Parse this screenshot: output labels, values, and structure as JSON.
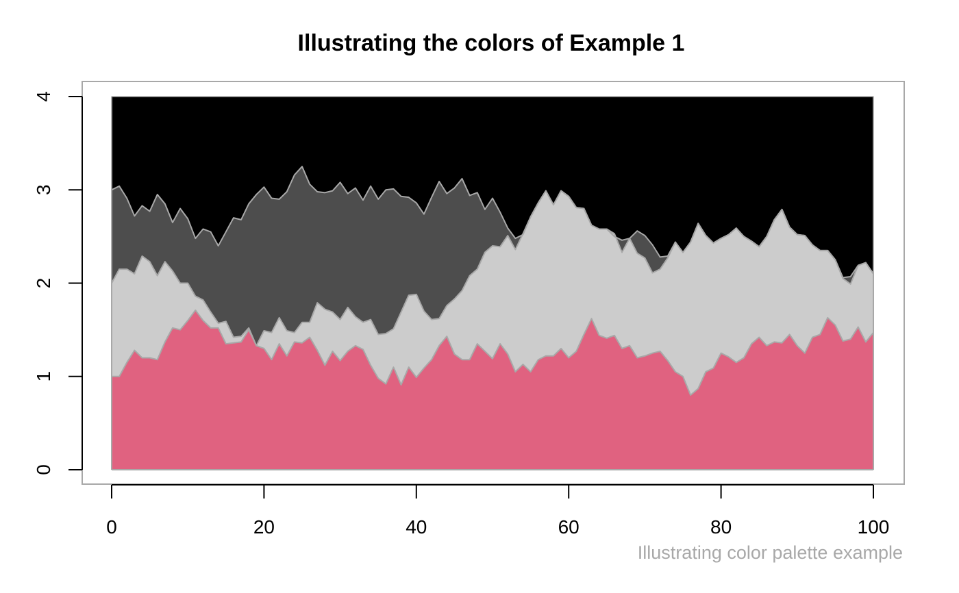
{
  "chart_data": {
    "type": "area",
    "title": "Illustrating the colors of Example 1",
    "caption": "Illustrating color palette example",
    "caption_color": "#a8a8a8",
    "xlabel": "",
    "ylabel": "",
    "xlim": [
      0,
      100
    ],
    "ylim": [
      0,
      4
    ],
    "x_ticks": [
      0,
      20,
      40,
      60,
      80,
      100
    ],
    "y_ticks": [
      0,
      1,
      2,
      3,
      4
    ],
    "grid": false,
    "legend": "none",
    "outline_color": "#a8a8a8",
    "stacked_boundaries": [
      {
        "fill": "#e06280",
        "values": [
          1.0,
          1.0,
          1.15,
          1.28,
          1.2,
          1.2,
          1.18,
          1.37,
          1.52,
          1.5,
          1.6,
          1.71,
          1.6,
          1.52,
          1.52,
          1.35,
          1.36,
          1.37,
          1.5,
          1.33,
          1.3,
          1.18,
          1.35,
          1.22,
          1.37,
          1.36,
          1.42,
          1.28,
          1.12,
          1.27,
          1.17,
          1.27,
          1.33,
          1.29,
          1.12,
          0.98,
          0.92,
          1.1,
          0.91,
          1.1,
          0.99,
          1.09,
          1.18,
          1.33,
          1.43,
          1.24,
          1.18,
          1.18,
          1.35,
          1.27,
          1.19,
          1.35,
          1.24,
          1.05,
          1.13,
          1.05,
          1.18,
          1.22,
          1.22,
          1.3,
          1.2,
          1.27,
          1.45,
          1.62,
          1.44,
          1.41,
          1.44,
          1.3,
          1.33,
          1.2,
          1.22,
          1.25,
          1.27,
          1.17,
          1.05,
          1.0,
          0.8,
          0.87,
          1.05,
          1.09,
          1.25,
          1.21,
          1.15,
          1.2,
          1.35,
          1.42,
          1.33,
          1.37,
          1.36,
          1.45,
          1.33,
          1.25,
          1.42,
          1.45,
          1.63,
          1.55,
          1.38,
          1.4,
          1.53,
          1.37,
          1.47
        ]
      },
      {
        "fill": "#cccccc",
        "values": [
          2.0,
          2.15,
          2.15,
          2.1,
          2.29,
          2.23,
          2.08,
          2.23,
          2.13,
          2.0,
          2.0,
          1.86,
          1.82,
          1.69,
          1.57,
          1.59,
          1.42,
          1.43,
          1.52,
          1.33,
          1.49,
          1.47,
          1.63,
          1.49,
          1.47,
          1.58,
          1.58,
          1.79,
          1.72,
          1.69,
          1.61,
          1.74,
          1.64,
          1.58,
          1.61,
          1.45,
          1.46,
          1.51,
          1.69,
          1.87,
          1.88,
          1.7,
          1.61,
          1.62,
          1.76,
          1.83,
          1.92,
          2.08,
          2.15,
          2.33,
          2.4,
          2.39,
          2.51,
          2.36,
          2.53,
          2.71,
          2.86,
          2.99,
          2.84,
          2.99,
          2.93,
          2.81,
          2.8,
          2.62,
          2.58,
          2.58,
          2.53,
          2.33,
          2.48,
          2.32,
          2.27,
          2.11,
          2.15,
          2.27,
          2.44,
          2.33,
          2.44,
          2.64,
          2.51,
          2.43,
          2.48,
          2.52,
          2.59,
          2.5,
          2.45,
          2.39,
          2.5,
          2.68,
          2.79,
          2.6,
          2.52,
          2.51,
          2.41,
          2.35,
          2.35,
          2.25,
          2.05,
          1.99,
          2.19,
          2.22,
          2.1
        ]
      },
      {
        "fill": "#4d4d4d",
        "values": [
          3.0,
          3.04,
          2.91,
          2.72,
          2.83,
          2.77,
          2.95,
          2.85,
          2.65,
          2.8,
          2.69,
          2.48,
          2.58,
          2.55,
          2.4,
          2.55,
          2.7,
          2.68,
          2.85,
          2.95,
          3.03,
          2.91,
          2.9,
          2.98,
          3.16,
          3.25,
          3.06,
          2.98,
          2.97,
          2.99,
          3.08,
          2.96,
          3.02,
          2.89,
          3.04,
          2.9,
          3.0,
          3.01,
          2.93,
          2.92,
          2.86,
          2.74,
          2.92,
          3.09,
          2.96,
          3.02,
          3.12,
          2.94,
          2.97,
          2.79,
          2.91,
          2.76,
          2.59,
          2.48,
          2.52,
          2.71,
          2.86,
          2.99,
          2.84,
          2.99,
          2.93,
          2.81,
          2.8,
          2.62,
          2.58,
          2.58,
          2.5,
          2.46,
          2.48,
          2.56,
          2.51,
          2.41,
          2.28,
          2.29,
          2.44,
          2.33,
          2.44,
          2.64,
          2.51,
          2.43,
          2.48,
          2.52,
          2.59,
          2.5,
          2.45,
          2.39,
          2.5,
          2.68,
          2.79,
          2.6,
          2.52,
          2.51,
          2.41,
          2.35,
          2.35,
          2.25,
          2.06,
          2.07,
          2.19,
          2.22,
          2.1
        ]
      },
      {
        "fill": "#000000",
        "values": [
          4,
          4,
          4,
          4,
          4,
          4,
          4,
          4,
          4,
          4,
          4,
          4,
          4,
          4,
          4,
          4,
          4,
          4,
          4,
          4,
          4,
          4,
          4,
          4,
          4,
          4,
          4,
          4,
          4,
          4,
          4,
          4,
          4,
          4,
          4,
          4,
          4,
          4,
          4,
          4,
          4,
          4,
          4,
          4,
          4,
          4,
          4,
          4,
          4,
          4,
          4,
          4,
          4,
          4,
          4,
          4,
          4,
          4,
          4,
          4,
          4,
          4,
          4,
          4,
          4,
          4,
          4,
          4,
          4,
          4,
          4,
          4,
          4,
          4,
          4,
          4,
          4,
          4,
          4,
          4,
          4,
          4,
          4,
          4,
          4,
          4,
          4,
          4,
          4,
          4,
          4,
          4,
          4,
          4,
          4,
          4,
          4,
          4,
          4,
          4,
          4
        ]
      }
    ]
  }
}
